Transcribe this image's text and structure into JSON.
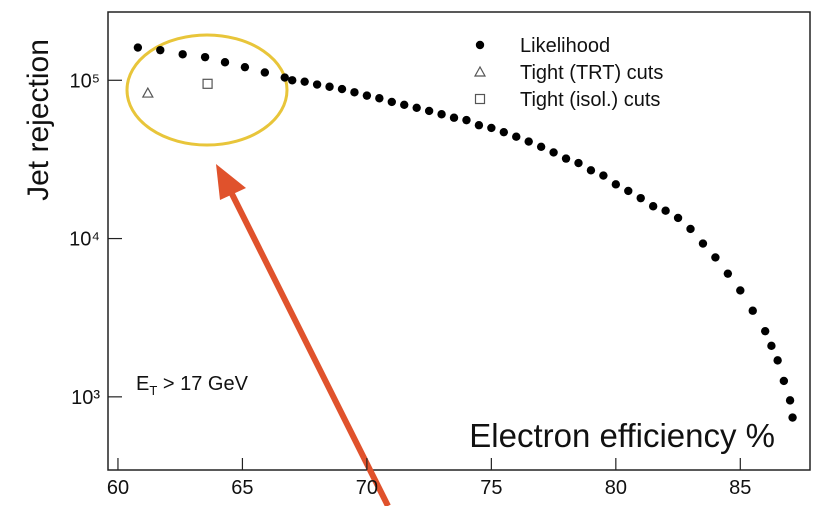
{
  "chart_data": {
    "type": "scatter",
    "y_label": "Jet rejection",
    "x_label": "Electron efficiency %",
    "annotation": {
      "base": "E",
      "sub": "T",
      "tail": " > 17 GeV"
    },
    "xlim": [
      59.6,
      87.8
    ],
    "xticks": [
      60,
      65,
      70,
      75,
      80,
      85
    ],
    "ylim": [
      345,
      270000
    ],
    "ylog": true,
    "yticks": [
      {
        "value": 1000,
        "label": "10³"
      },
      {
        "value": 10000,
        "label": "10⁴"
      },
      {
        "value": 100000,
        "label": "10⁵"
      }
    ],
    "legend": "upper right",
    "series": [
      {
        "name": "Likelihood",
        "color": "#000000",
        "marker": "circle",
        "x": [
          60.8,
          61.7,
          62.6,
          63.5,
          64.3,
          65.1,
          65.9,
          66.7,
          67.0,
          67.5,
          68.0,
          68.5,
          69.0,
          69.5,
          70.0,
          70.5,
          71.0,
          71.5,
          72.0,
          72.5,
          73.0,
          73.5,
          74.0,
          74.5,
          75.0,
          75.5,
          76.0,
          76.5,
          77.0,
          77.5,
          78.0,
          78.5,
          79.0,
          79.5,
          80.0,
          80.5,
          81.0,
          81.5,
          82.0,
          82.5,
          83.0,
          83.5,
          84.0,
          84.5,
          85.0,
          85.5,
          86.0,
          86.25,
          86.5,
          86.75,
          87.0,
          87.1
        ],
        "values": [
          161000,
          155000,
          146000,
          140000,
          130000,
          121000,
          112000,
          104000,
          100000,
          98000,
          94000,
          91000,
          88000,
          84000,
          80000,
          77000,
          73000,
          70000,
          67000,
          64000,
          61000,
          58000,
          56000,
          52000,
          50000,
          47000,
          44000,
          41000,
          38000,
          35000,
          32000,
          30000,
          27000,
          25000,
          22000,
          20000,
          18000,
          16000,
          15000,
          13500,
          11500,
          9300,
          7600,
          6000,
          4700,
          3500,
          2600,
          2100,
          1700,
          1260,
          950,
          740
        ]
      },
      {
        "name": "Tight (TRT) cuts",
        "color": "#555555",
        "marker": "triangle",
        "x": [
          61.2
        ],
        "values": [
          83000
        ]
      },
      {
        "name": "Tight (isol.) cuts",
        "color": "#555555",
        "marker": "square",
        "x": [
          63.6
        ],
        "values": [
          95000
        ]
      }
    ]
  }
}
